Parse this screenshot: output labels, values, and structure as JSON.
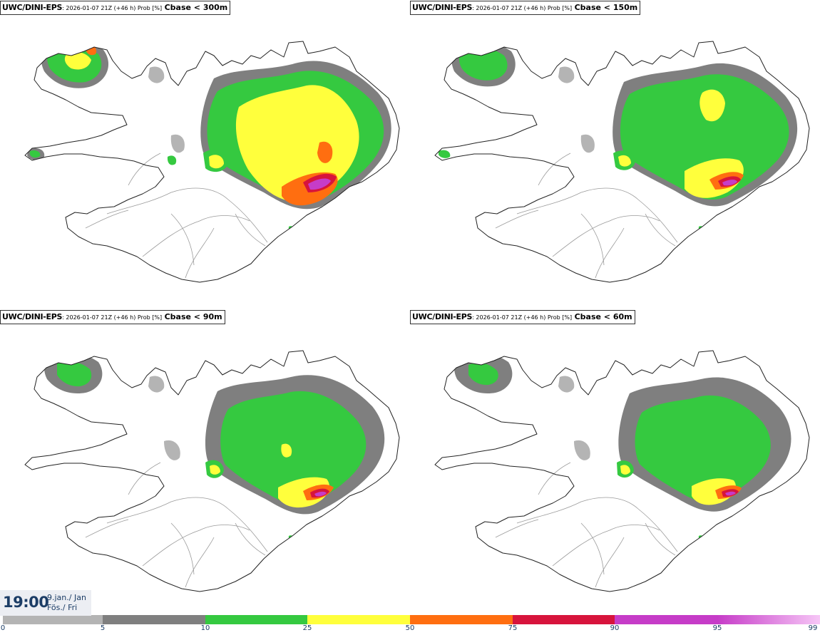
{
  "panels": [
    {
      "model": "UWC/DINI-EPS",
      "meta": ": 2026-01-07 21Z (+46 h) Prob [%]",
      "field": "Cbase < 300m"
    },
    {
      "model": "UWC/DINI-EPS",
      "meta": ": 2026-01-07 21Z (+46 h) Prob [%]",
      "field": "Cbase < 150m"
    },
    {
      "model": "UWC/DINI-EPS",
      "meta": ": 2026-01-07 21Z (+46 h) Prob [%]",
      "field": "Cbase < 90m"
    },
    {
      "model": "UWC/DINI-EPS",
      "meta": ": 2026-01-07 21Z (+46 h) Prob [%]",
      "field": "Cbase < 60m"
    }
  ],
  "valid_time": {
    "time": "19:00",
    "date_line1": "9.jan./ Jan",
    "date_line2": "Fös./ Fri"
  },
  "legend": {
    "labels": [
      "0",
      "5",
      "10",
      "25",
      "50",
      "75",
      "90",
      "95",
      "99"
    ],
    "colors": [
      "#ffffff",
      "#b4b4b4",
      "#7f7f7f",
      "#35c940",
      "#ffff3c",
      "#ff6e10",
      "#d7143c",
      "#c63cc8",
      "#f6c6f6"
    ]
  }
}
